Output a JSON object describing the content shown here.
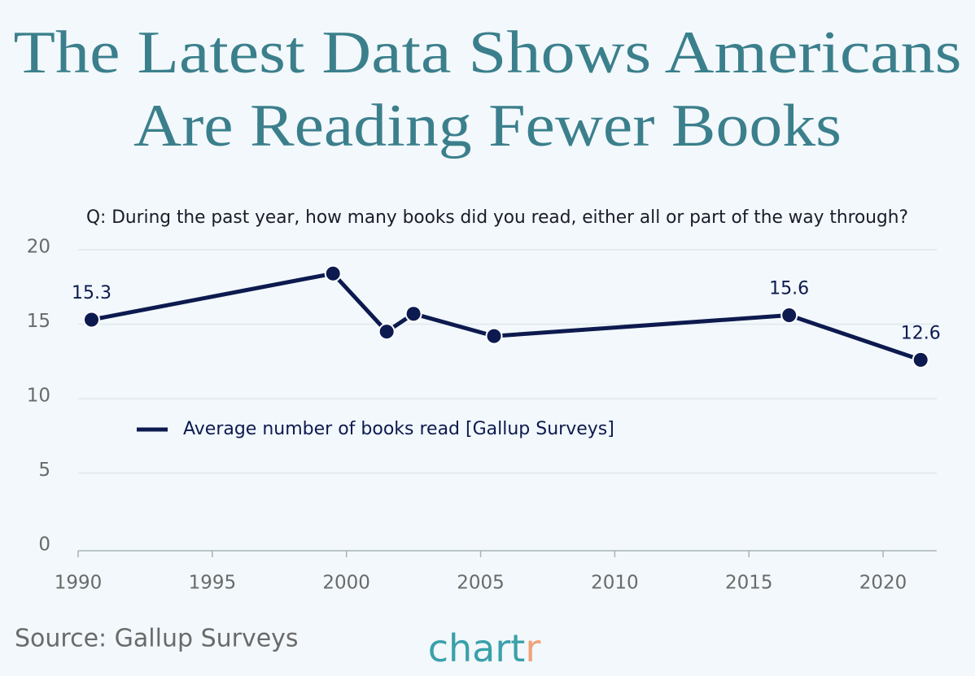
{
  "chart_data": {
    "type": "line",
    "title": [
      "The Latest Data Shows Americans",
      "Are Reading Fewer Books"
    ],
    "subtitle": "Q: During the past year, how many books did you read, either all or part of the way through?",
    "x": [
      1990.5,
      1999.5,
      2001.5,
      2002.5,
      2005.5,
      2016.5,
      2021.4
    ],
    "series": [
      {
        "name": "Average number of books read [Gallup Surveys]",
        "color": "#0d1a4f",
        "values": [
          15.3,
          18.4,
          14.5,
          15.7,
          14.2,
          15.6,
          12.6
        ],
        "value_labels": [
          "15.3",
          null,
          null,
          null,
          null,
          "15.6",
          "12.6"
        ]
      }
    ],
    "xlim": [
      1990,
      2022
    ],
    "xticks": [
      1990,
      1995,
      2000,
      2005,
      2010,
      2015,
      2020
    ],
    "ylim": [
      0,
      20
    ],
    "yticks": [
      0,
      5,
      10,
      15,
      20
    ],
    "grid": true,
    "source": "Source: Gallup Surveys",
    "brand": "chartr"
  }
}
